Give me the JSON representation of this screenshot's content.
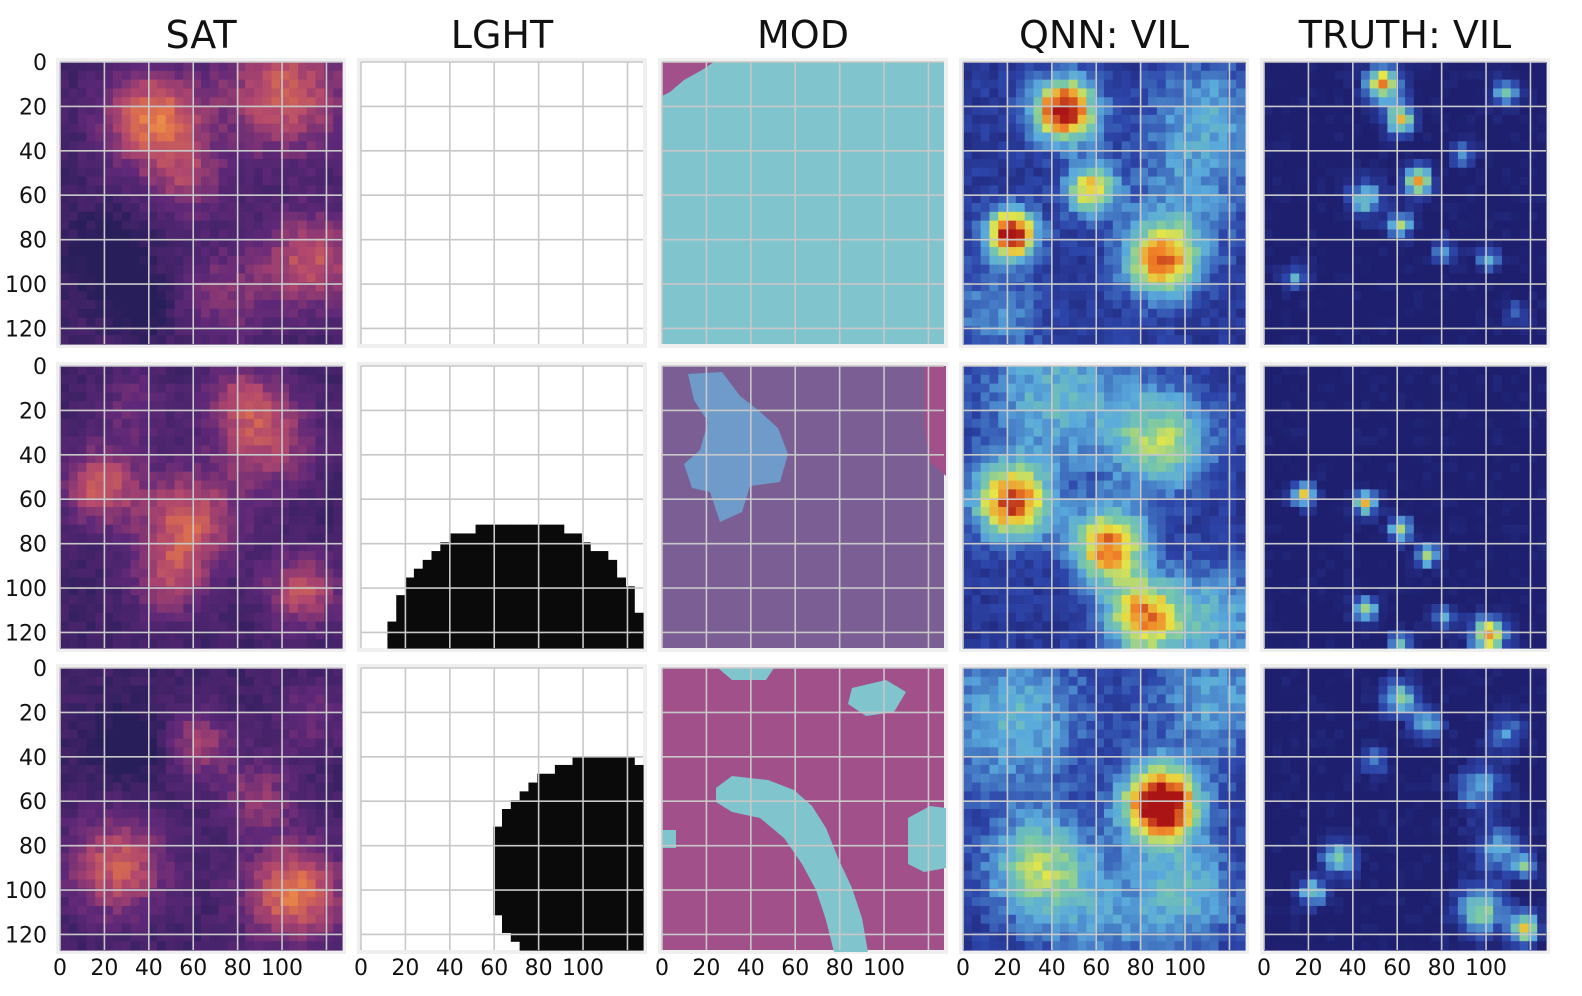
{
  "chart_data": {
    "type": "heatmap",
    "layout": {
      "rows": 3,
      "cols": 5
    },
    "column_titles": [
      "SAT",
      "LGHT",
      "MOD",
      "QNN: VIL",
      "TRUTH: VIL"
    ],
    "x_ticks": [
      "0",
      "20",
      "40",
      "60",
      "80",
      "100"
    ],
    "y_ticks": [
      "0",
      "20",
      "40",
      "60",
      "80",
      "100",
      "120"
    ],
    "axis_range": {
      "x": [
        0,
        127
      ],
      "y": [
        0,
        127
      ]
    },
    "grid": true,
    "colormaps": {
      "SAT": "inferno",
      "LGHT": "binary",
      "MOD": "categorical",
      "QNN: VIL": "jet",
      "TRUTH: VIL": "jet"
    },
    "colors": {
      "panel_background": "#efefef",
      "grid": "#c8c8c8",
      "mod_cyan": "#80c4cd",
      "mod_blue": "#6f9bcb",
      "mod_purple": "#7b5e93",
      "mod_magenta": "#a2508a",
      "lght_black": "#0a0a0a",
      "vil_background": "#1e1f6e"
    },
    "lght_regions": [
      {
        "row": 0,
        "shape": "none"
      },
      {
        "row": 1,
        "shape": "half-disk",
        "center_x": 70,
        "center_y": 128,
        "radius": 58
      },
      {
        "row": 2,
        "shape": "disk",
        "center_x": 110,
        "center_y": 92,
        "radius": 52
      }
    ]
  }
}
